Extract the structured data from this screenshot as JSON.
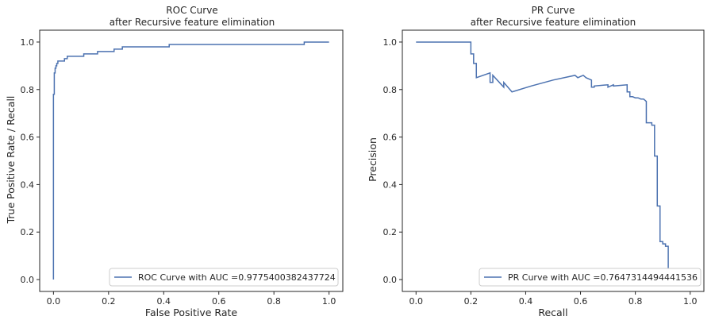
{
  "colors": {
    "line": "#4c72b0",
    "frame": "#262626",
    "background": "#ffffff",
    "legend_border": "#cccccc"
  },
  "chart_data": [
    {
      "type": "line",
      "title": [
        "ROC Curve",
        "after Recursive feature elimination"
      ],
      "xlabel": "False Positive Rate",
      "ylabel": "True Positive Rate / Recall",
      "xlim": [
        -0.05,
        1.05
      ],
      "ylim": [
        -0.05,
        1.05
      ],
      "xticks": [
        0.0,
        0.2,
        0.4,
        0.6,
        0.8,
        1.0
      ],
      "yticks": [
        0.0,
        0.2,
        0.4,
        0.6,
        0.8,
        1.0
      ],
      "tick_labels": [
        "0.0",
        "0.2",
        "0.4",
        "0.6",
        "0.8",
        "1.0"
      ],
      "grid": false,
      "legend_position": "lower-right",
      "series": [
        {
          "name": "ROC Curve with AUC =0.9775400382437724",
          "x": [
            0.0,
            0.0,
            0.003,
            0.003,
            0.006,
            0.006,
            0.009,
            0.009,
            0.012,
            0.012,
            0.016,
            0.016,
            0.04,
            0.04,
            0.05,
            0.05,
            0.11,
            0.11,
            0.16,
            0.16,
            0.22,
            0.22,
            0.25,
            0.25,
            0.42,
            0.42,
            0.91,
            0.91,
            1.0
          ],
          "y": [
            0.0,
            0.78,
            0.78,
            0.87,
            0.87,
            0.89,
            0.89,
            0.9,
            0.9,
            0.91,
            0.91,
            0.92,
            0.92,
            0.93,
            0.93,
            0.94,
            0.94,
            0.95,
            0.95,
            0.96,
            0.96,
            0.97,
            0.97,
            0.98,
            0.98,
            0.99,
            0.99,
            1.0,
            1.0
          ]
        }
      ]
    },
    {
      "type": "line",
      "title": [
        "PR Curve",
        "after Recursive feature elimination"
      ],
      "xlabel": "Recall",
      "ylabel": "Precision",
      "xlim": [
        -0.05,
        1.05
      ],
      "ylim": [
        -0.05,
        1.05
      ],
      "xticks": [
        0.0,
        0.2,
        0.4,
        0.6,
        0.8,
        1.0
      ],
      "yticks": [
        0.0,
        0.2,
        0.4,
        0.6,
        0.8,
        1.0
      ],
      "tick_labels": [
        "0.0",
        "0.2",
        "0.4",
        "0.6",
        "0.8",
        "1.0"
      ],
      "grid": false,
      "legend_position": "lower-right",
      "series": [
        {
          "name": "PR Curve with AUC =0.7647314494441536",
          "x": [
            0.0,
            0.2,
            0.2,
            0.21,
            0.21,
            0.22,
            0.22,
            0.27,
            0.27,
            0.28,
            0.28,
            0.32,
            0.32,
            0.35,
            0.35,
            0.42,
            0.5,
            0.58,
            0.59,
            0.6,
            0.61,
            0.62,
            0.64,
            0.64,
            0.65,
            0.65,
            0.7,
            0.7,
            0.72,
            0.72,
            0.77,
            0.77,
            0.78,
            0.78,
            0.79,
            0.79,
            0.8,
            0.81,
            0.82,
            0.83,
            0.84,
            0.84,
            0.86,
            0.86,
            0.87,
            0.87,
            0.88,
            0.88,
            0.89,
            0.89,
            0.9,
            0.9,
            0.91,
            0.91,
            0.92,
            0.92,
            0.94
          ],
          "y": [
            1.0,
            1.0,
            0.95,
            0.95,
            0.91,
            0.91,
            0.85,
            0.87,
            0.83,
            0.83,
            0.86,
            0.81,
            0.83,
            0.79,
            0.79,
            0.815,
            0.84,
            0.86,
            0.85,
            0.855,
            0.86,
            0.85,
            0.84,
            0.81,
            0.81,
            0.815,
            0.82,
            0.81,
            0.82,
            0.815,
            0.82,
            0.79,
            0.79,
            0.77,
            0.77,
            0.77,
            0.765,
            0.765,
            0.76,
            0.76,
            0.75,
            0.66,
            0.66,
            0.65,
            0.65,
            0.52,
            0.52,
            0.31,
            0.31,
            0.16,
            0.16,
            0.15,
            0.15,
            0.14,
            0.14,
            0.035,
            0.035
          ]
        }
      ]
    }
  ]
}
